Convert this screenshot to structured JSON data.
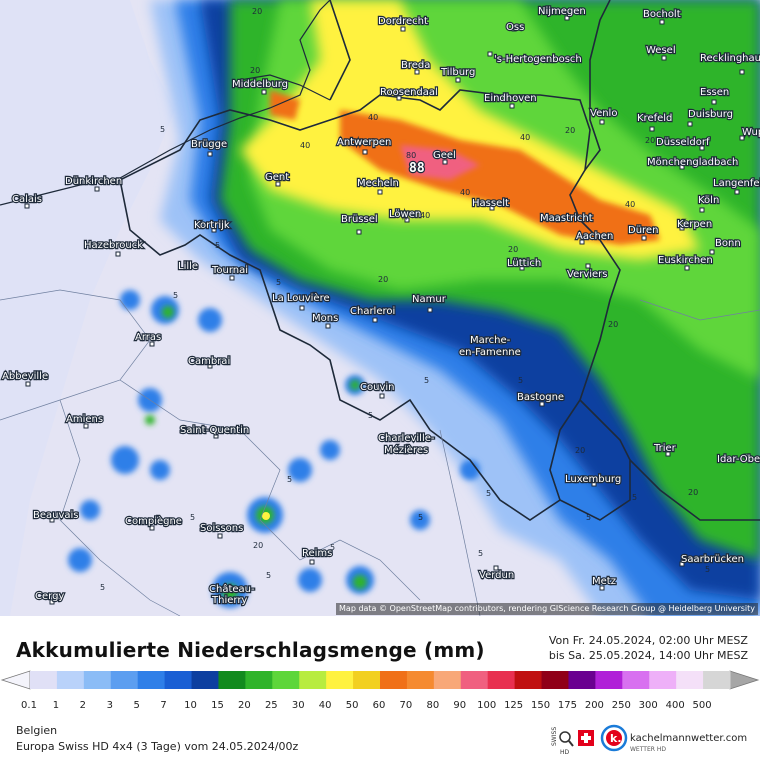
{
  "title": "Akkumulierte Niederschlagsmenge (mm)",
  "period": {
    "from": "Von Fr. 24.05.2024, 02:00 Uhr MESZ",
    "to": "bis Sa. 25.05.2024, 14:00 Uhr MESZ"
  },
  "region": "Belgien",
  "model": "Europa Swiss HD 4x4 (3 Tage) vom  24.05.2024/00z",
  "attribution": "Map data © OpenStreetMap contributors, rendering GIScience Research Group @ Heidelberg University",
  "brand": {
    "name": "kachelmannwetter.com",
    "sub": "WETTER HD",
    "swiss": "SWISS",
    "hd": "HD"
  },
  "peak_value": "88",
  "legend": {
    "labels": [
      "0.1",
      "1",
      "2",
      "3",
      "5",
      "7",
      "10",
      "15",
      "20",
      "25",
      "30",
      "40",
      "50",
      "60",
      "70",
      "80",
      "90",
      "100",
      "125",
      "150",
      "175",
      "200",
      "250",
      "300",
      "400",
      "500"
    ],
    "colors": [
      "#e0e0f6",
      "#b9d2fa",
      "#8bbcf6",
      "#5c9ef0",
      "#2f7fe8",
      "#1a5fd4",
      "#0d3fa0",
      "#128a1e",
      "#2fb42a",
      "#5ed63a",
      "#b8ec40",
      "#fff240",
      "#f2d020",
      "#f07018",
      "#f58a30",
      "#f8a878",
      "#f06080",
      "#e83050",
      "#c01010",
      "#900018",
      "#6a0090",
      "#b020d8",
      "#d870f0",
      "#eeb0f8",
      "#f4e0f8",
      "#d6d6d6"
    ]
  },
  "cities": [
    {
      "name": "Dordrecht"
    },
    {
      "name": "Oss"
    },
    {
      "name": "Nijmegen"
    },
    {
      "name": "Bocholt"
    },
    {
      "name": "Middelburg"
    },
    {
      "name": "Breda"
    },
    {
      "name": "Tilburg"
    },
    {
      "name": "'s-Hertogenbosch"
    },
    {
      "name": "Wesel"
    },
    {
      "name": "Recklinghausen"
    },
    {
      "name": "Roosendaal"
    },
    {
      "name": "Eindhoven"
    },
    {
      "name": "Essen"
    },
    {
      "name": "Venlo"
    },
    {
      "name": "Duisburg"
    },
    {
      "name": "Krefeld"
    },
    {
      "name": "Brügge"
    },
    {
      "name": "Antwerpen"
    },
    {
      "name": "Geel"
    },
    {
      "name": "Düsseldorf"
    },
    {
      "name": "Wuppertal"
    },
    {
      "name": "Mönchengladbach"
    },
    {
      "name": "Gent"
    },
    {
      "name": "Mecheln"
    },
    {
      "name": "Dünkirchen"
    },
    {
      "name": "Langenfeld"
    },
    {
      "name": "Calais"
    },
    {
      "name": "Hasselt"
    },
    {
      "name": "Köln"
    },
    {
      "name": "Löwen"
    },
    {
      "name": "Maastricht"
    },
    {
      "name": "Kortrijk"
    },
    {
      "name": "Brüssel"
    },
    {
      "name": "Düren"
    },
    {
      "name": "Kerpen"
    },
    {
      "name": "Aachen"
    },
    {
      "name": "Hazebrouck"
    },
    {
      "name": "Bonn"
    },
    {
      "name": "Lille"
    },
    {
      "name": "Tournai"
    },
    {
      "name": "Lüttich"
    },
    {
      "name": "Verviers"
    },
    {
      "name": "Euskirchen"
    },
    {
      "name": "La Louvière"
    },
    {
      "name": "Namur"
    },
    {
      "name": "Charleroi"
    },
    {
      "name": "Mons"
    },
    {
      "name": "Arras"
    },
    {
      "name": "Marche-en-Famenne"
    },
    {
      "name": "Cambrai"
    },
    {
      "name": "Abbeville"
    },
    {
      "name": "Couvin"
    },
    {
      "name": "Bastogne"
    },
    {
      "name": "Amiens"
    },
    {
      "name": "Saint-Quentin"
    },
    {
      "name": "Charleville-Mézières"
    },
    {
      "name": "Trier"
    },
    {
      "name": "Idar-Oberstein"
    },
    {
      "name": "Luxemburg"
    },
    {
      "name": "Beauvais"
    },
    {
      "name": "Compiègne"
    },
    {
      "name": "Soissons"
    },
    {
      "name": "Reims"
    },
    {
      "name": "Saarbrücken"
    },
    {
      "name": "Verdun"
    },
    {
      "name": "Metz"
    },
    {
      "name": "Château-Thierry"
    },
    {
      "name": "Cergy"
    }
  ],
  "contour_labels": [
    "20",
    "20",
    "5",
    "5",
    "40",
    "40",
    "40",
    "40",
    "20",
    "20",
    "80",
    "40",
    "20",
    "40",
    "20",
    "20",
    "5",
    "5",
    "5",
    "5",
    "5",
    "5",
    "5",
    "5",
    "5",
    "5",
    "20",
    "5",
    "5",
    "20",
    "5",
    "5",
    "5",
    "5",
    "20"
  ]
}
